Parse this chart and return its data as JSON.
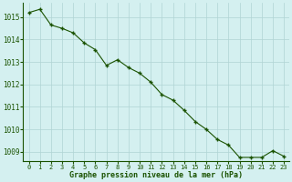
{
  "x": [
    0,
    1,
    2,
    3,
    4,
    5,
    6,
    7,
    8,
    9,
    10,
    11,
    12,
    13,
    14,
    15,
    16,
    17,
    18,
    19,
    20,
    21,
    22,
    23
  ],
  "y": [
    1015.2,
    1015.35,
    1014.65,
    1014.5,
    1014.3,
    1013.85,
    1013.55,
    1012.85,
    1013.1,
    1012.75,
    1012.5,
    1012.1,
    1011.55,
    1011.3,
    1010.85,
    1010.35,
    1010.0,
    1009.55,
    1009.3,
    1008.75,
    1008.75,
    1008.75,
    1009.05,
    1008.8
  ],
  "ylim": [
    1008.6,
    1015.65
  ],
  "yticks": [
    1009,
    1010,
    1011,
    1012,
    1013,
    1014,
    1015
  ],
  "xticks": [
    0,
    1,
    2,
    3,
    4,
    5,
    6,
    7,
    8,
    9,
    10,
    11,
    12,
    13,
    14,
    15,
    16,
    17,
    18,
    19,
    20,
    21,
    22,
    23
  ],
  "xlabel": "Graphe pression niveau de la mer (hPa)",
  "line_color": "#1a5200",
  "marker": "+",
  "bg_color": "#d4f0f0",
  "grid_color": "#b0d4d4",
  "axis_label_color": "#1a5200",
  "tick_label_color": "#1a5200"
}
